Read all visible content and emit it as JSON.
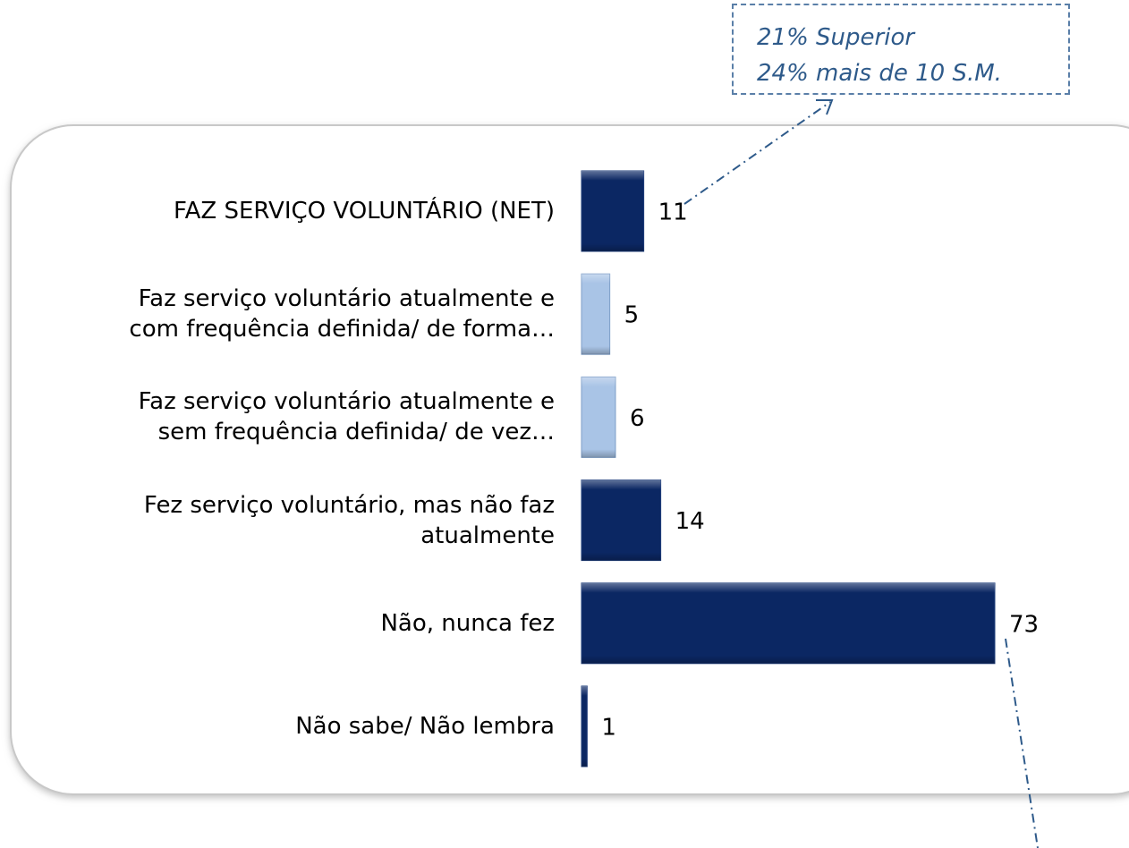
{
  "chart_data": {
    "type": "barh",
    "categories": [
      "FAZ SERVIÇO VOLUNTÁRIO (NET)",
      "Faz serviço voluntário atualmente e\ncom frequência definida/ de forma…",
      "Faz serviço voluntário atualmente e\nsem frequência definida/ de vez…",
      "Fez serviço voluntário, mas não faz\natualmente",
      "Não, nunca fez",
      "Não sabe/ Não lembra"
    ],
    "values": [
      11,
      5,
      6,
      14,
      73,
      1
    ],
    "colors": [
      "#0b2763",
      "#a9c4e6",
      "#a9c4e6",
      "#0b2763",
      "#0b2763",
      "#0b2763"
    ],
    "annotation": [
      "21% Superior",
      "24% mais de 10 S.M."
    ]
  }
}
